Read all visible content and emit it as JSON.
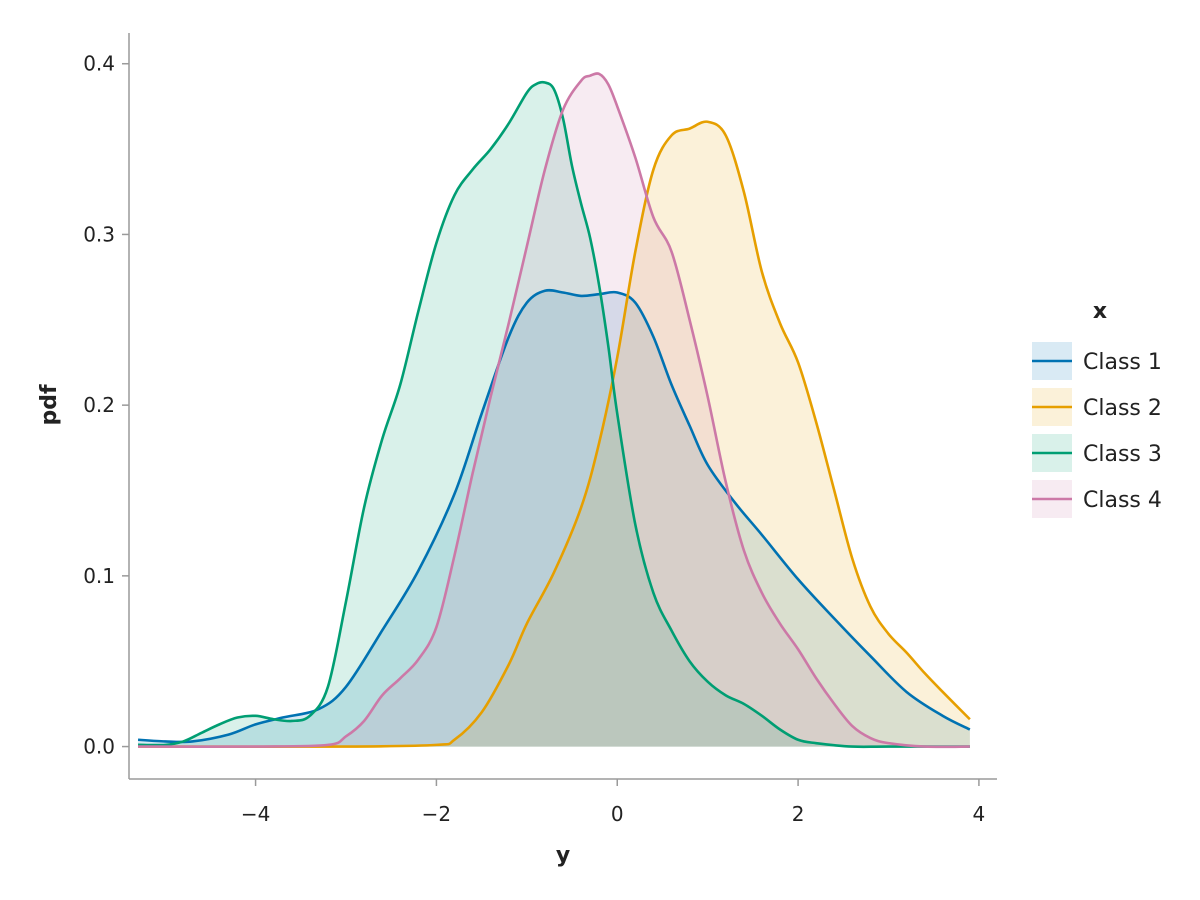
{
  "chart_data": {
    "type": "area",
    "xlabel": "y",
    "ylabel": "pdf",
    "xlim": [
      -5.4,
      4.2
    ],
    "ylim": [
      -0.019,
      0.418
    ],
    "xticks": [
      -4,
      -2,
      0,
      2,
      4
    ],
    "xtick_labels": [
      "−4",
      "−2",
      "0",
      "2",
      "4"
    ],
    "yticks": [
      0.0,
      0.1,
      0.2,
      0.3,
      0.4
    ],
    "ytick_labels": [
      "0.0",
      "0.1",
      "0.2",
      "0.3",
      "0.4"
    ],
    "grid": false,
    "legend": {
      "title": "x",
      "placement": "right"
    },
    "series": [
      {
        "name": "Class 1",
        "color": "#0072B2",
        "x": [
          -5.3,
          -5.0,
          -4.7,
          -4.3,
          -4.0,
          -3.7,
          -3.3,
          -3.0,
          -2.6,
          -2.2,
          -1.8,
          -1.5,
          -1.2,
          -1.0,
          -0.8,
          -0.6,
          -0.4,
          -0.2,
          0.0,
          0.2,
          0.4,
          0.6,
          0.8,
          1.0,
          1.3,
          1.6,
          2.0,
          2.4,
          2.8,
          3.2,
          3.6,
          3.9
        ],
        "y": [
          0.004,
          0.003,
          0.003,
          0.007,
          0.013,
          0.017,
          0.022,
          0.035,
          0.068,
          0.103,
          0.148,
          0.195,
          0.24,
          0.26,
          0.267,
          0.266,
          0.264,
          0.265,
          0.266,
          0.26,
          0.24,
          0.212,
          0.188,
          0.165,
          0.143,
          0.124,
          0.098,
          0.075,
          0.053,
          0.032,
          0.018,
          0.01
        ]
      },
      {
        "name": "Class 2",
        "color": "#E69F00",
        "x": [
          -5.3,
          -3.0,
          -2.0,
          -1.8,
          -1.5,
          -1.2,
          -1.0,
          -0.7,
          -0.4,
          -0.2,
          0.0,
          0.2,
          0.4,
          0.6,
          0.8,
          1.0,
          1.2,
          1.4,
          1.6,
          1.8,
          2.0,
          2.2,
          2.4,
          2.6,
          2.8,
          3.0,
          3.2,
          3.4,
          3.6,
          3.9
        ],
        "y": [
          0.0,
          0.0,
          0.001,
          0.004,
          0.02,
          0.048,
          0.072,
          0.102,
          0.14,
          0.178,
          0.228,
          0.29,
          0.338,
          0.358,
          0.362,
          0.366,
          0.358,
          0.325,
          0.278,
          0.248,
          0.225,
          0.19,
          0.15,
          0.11,
          0.082,
          0.066,
          0.055,
          0.043,
          0.032,
          0.016
        ]
      },
      {
        "name": "Class 3",
        "color": "#009E73",
        "x": [
          -5.3,
          -5.0,
          -4.8,
          -4.6,
          -4.4,
          -4.2,
          -4.0,
          -3.8,
          -3.6,
          -3.4,
          -3.2,
          -3.0,
          -2.8,
          -2.6,
          -2.4,
          -2.2,
          -2.0,
          -1.8,
          -1.6,
          -1.4,
          -1.2,
          -1.0,
          -0.9,
          -0.8,
          -0.7,
          -0.6,
          -0.5,
          -0.4,
          -0.3,
          -0.2,
          -0.1,
          0.0,
          0.2,
          0.4,
          0.6,
          0.8,
          1.0,
          1.2,
          1.4,
          1.6,
          1.8,
          2.0,
          2.2,
          2.6,
          3.0,
          3.9
        ],
        "y": [
          0.001,
          0.001,
          0.003,
          0.008,
          0.013,
          0.017,
          0.018,
          0.016,
          0.015,
          0.018,
          0.035,
          0.085,
          0.14,
          0.18,
          0.212,
          0.255,
          0.295,
          0.323,
          0.338,
          0.35,
          0.365,
          0.383,
          0.388,
          0.389,
          0.385,
          0.368,
          0.34,
          0.318,
          0.298,
          0.27,
          0.235,
          0.195,
          0.13,
          0.09,
          0.068,
          0.05,
          0.038,
          0.03,
          0.025,
          0.018,
          0.01,
          0.004,
          0.002,
          0.0,
          0.0,
          0.0
        ]
      },
      {
        "name": "Class 4",
        "color": "#CC79A7",
        "x": [
          -5.3,
          -4.0,
          -3.2,
          -3.0,
          -2.8,
          -2.6,
          -2.4,
          -2.2,
          -2.0,
          -1.8,
          -1.6,
          -1.4,
          -1.2,
          -1.0,
          -0.8,
          -0.6,
          -0.4,
          -0.3,
          -0.2,
          -0.1,
          0.0,
          0.2,
          0.4,
          0.6,
          0.8,
          1.0,
          1.2,
          1.4,
          1.6,
          1.8,
          2.0,
          2.2,
          2.4,
          2.6,
          2.8,
          3.0,
          3.4,
          3.9
        ],
        "y": [
          0.0,
          0.0,
          0.001,
          0.006,
          0.015,
          0.03,
          0.04,
          0.051,
          0.07,
          0.112,
          0.16,
          0.205,
          0.248,
          0.293,
          0.338,
          0.373,
          0.39,
          0.393,
          0.394,
          0.388,
          0.375,
          0.345,
          0.31,
          0.29,
          0.25,
          0.205,
          0.155,
          0.115,
          0.09,
          0.072,
          0.057,
          0.04,
          0.025,
          0.012,
          0.005,
          0.002,
          0.0,
          0.0
        ]
      }
    ]
  }
}
